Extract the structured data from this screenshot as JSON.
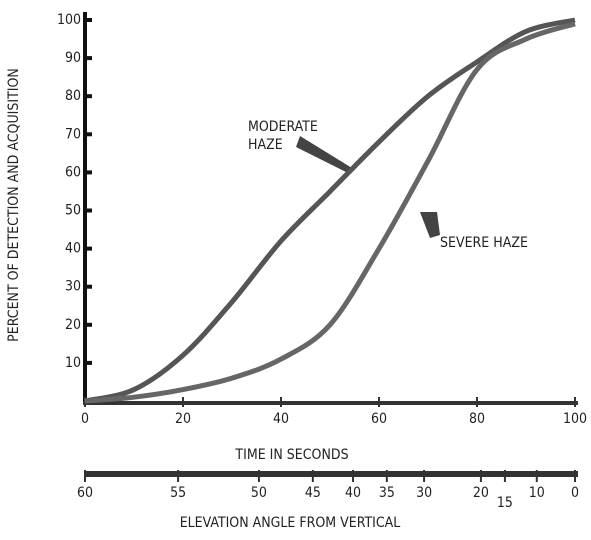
{
  "chart_data": {
    "type": "line",
    "y_label": "PERCENT OF DETECTION AND ACQUISITION",
    "x_label": "TIME IN SECONDS",
    "x2_label": "ELEVATION ANGLE FROM VERTICAL",
    "x": [
      0,
      10,
      20,
      30,
      40,
      50,
      60,
      70,
      80,
      90,
      100
    ],
    "series": [
      {
        "name": [
          "MODERATE",
          "HAZE"
        ],
        "color": "#555555",
        "values": [
          0,
          3,
          12,
          26,
          42,
          55,
          68,
          80,
          89,
          97,
          100
        ]
      },
      {
        "name": [
          "SEVERE HAZE"
        ],
        "color": "#666666",
        "values": [
          0,
          1,
          3,
          6,
          11,
          20,
          40,
          63,
          87,
          95,
          99
        ]
      }
    ],
    "xlim": [
      0,
      100
    ],
    "ylim": [
      0,
      100
    ],
    "xticks": [
      0,
      20,
      40,
      60,
      80,
      100
    ],
    "yticks": [
      10,
      20,
      30,
      40,
      50,
      60,
      70,
      80,
      90,
      100
    ],
    "x2ticks": [
      {
        "angle": 60,
        "time": 0
      },
      {
        "angle": 55,
        "time": 19
      },
      {
        "angle": 50,
        "time": 35.5
      },
      {
        "angle": 45,
        "time": 46.5
      },
      {
        "angle": 40,
        "time": 54.7
      },
      {
        "angle": 35,
        "time": 61.6
      },
      {
        "angle": 30,
        "time": 69.2
      },
      {
        "angle": 20,
        "time": 80.8
      },
      {
        "angle": 15,
        "time": 85.7
      },
      {
        "angle": 10,
        "time": 92.2
      },
      {
        "angle": 0,
        "time": 100
      }
    ]
  }
}
